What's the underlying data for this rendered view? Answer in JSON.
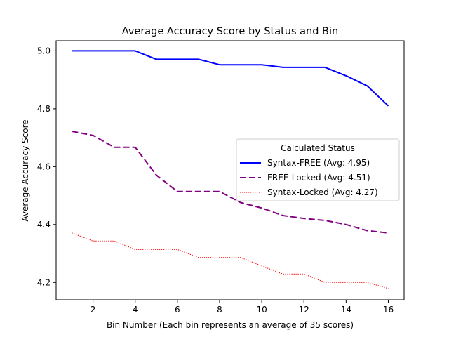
{
  "chart_data": {
    "type": "line",
    "title": "Average Accuracy Score by Status and Bin",
    "xlabel": "Bin Number (Each bin represents an average of 35 scores)",
    "ylabel": "Average Accuracy Score",
    "xlim": [
      0.25,
      16.75
    ],
    "ylim": [
      4.14,
      5.035
    ],
    "x_ticks": [
      2,
      4,
      6,
      8,
      10,
      12,
      14,
      16
    ],
    "y_ticks": [
      4.2,
      4.4,
      4.6,
      4.8,
      5.0
    ],
    "x_tick_labels": [
      "2",
      "4",
      "6",
      "8",
      "10",
      "12",
      "14",
      "16"
    ],
    "y_tick_labels": [
      "4.2",
      "4.4",
      "4.6",
      "4.8",
      "5.0"
    ],
    "grid": false,
    "legend": {
      "title": "Calculated Status",
      "placement": "center-right"
    },
    "x": [
      1,
      2,
      3,
      4,
      5,
      6,
      7,
      8,
      9,
      10,
      11,
      12,
      13,
      14,
      15,
      16
    ],
    "series": [
      {
        "name": "Syntax-FREE (Avg: 4.95)",
        "color": "#0000ff",
        "style": "solid",
        "values": [
          5.0,
          5.0,
          5.0,
          5.0,
          4.971,
          4.971,
          4.971,
          4.952,
          4.952,
          4.952,
          4.943,
          4.943,
          4.943,
          4.914,
          4.879,
          4.81
        ]
      },
      {
        "name": "FREE-Locked (Avg: 4.51)",
        "color": "#800080",
        "style": "dashed",
        "values": [
          4.722,
          4.708,
          4.667,
          4.667,
          4.571,
          4.514,
          4.514,
          4.514,
          4.476,
          4.457,
          4.431,
          4.421,
          4.414,
          4.4,
          4.379,
          4.371
        ]
      },
      {
        "name": "Syntax-Locked (Avg: 4.27)",
        "color": "#ff0000",
        "style": "dotted",
        "values": [
          4.371,
          4.343,
          4.343,
          4.314,
          4.314,
          4.314,
          4.286,
          4.286,
          4.286,
          4.257,
          4.229,
          4.229,
          4.2,
          4.2,
          4.2,
          4.179
        ]
      }
    ]
  }
}
